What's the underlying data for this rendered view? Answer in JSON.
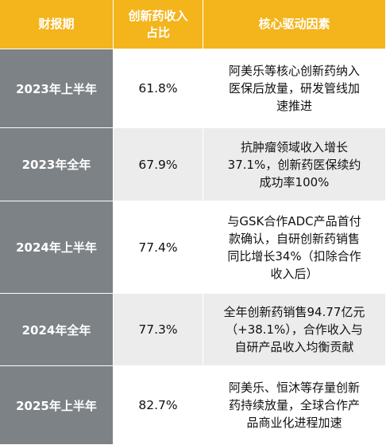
{
  "table": {
    "headers": {
      "period": "财报期",
      "share": "创新药收入\n占比",
      "drivers": "核心驱动因素"
    },
    "rows": [
      {
        "period": "2023年上半年",
        "share": "61.8%",
        "drivers": "阿美乐等核心创新药纳入\n医保后放量，研发管线加\n速推进"
      },
      {
        "period": "2023年全年",
        "share": "67.9%",
        "drivers": "抗肿瘤领域收入增长\n37.1%，创新药医保续约\n成功率100%"
      },
      {
        "period": "2024年上半年",
        "share": "77.4%",
        "drivers": "与GSK合作ADC产品首付\n款确认，自研创新药销售\n同比增长34%（扣除合作\n收入后）"
      },
      {
        "period": "2024年全年",
        "share": "77.3%",
        "drivers": "全年创新药销售94.77亿元\n（+38.1%），合作收入与\n自研产品收入均衡贡献"
      },
      {
        "period": "2025年上半年",
        "share": "82.7%",
        "drivers": "阿美乐、恒沐等存量创新\n药持续放量，全球合作产\n品商业化进程加速"
      }
    ],
    "colors": {
      "header_bg": "#f4b41c",
      "period_bg": "#7d8287",
      "row_alt_bg": "#ececec",
      "row_bg": "#ffffff"
    }
  }
}
